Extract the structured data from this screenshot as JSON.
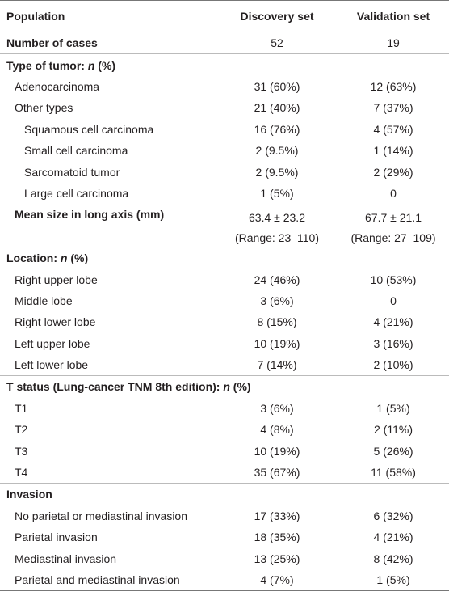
{
  "table": {
    "header": [
      "Population",
      "Discovery set",
      "Validation set"
    ],
    "rows": [
      [
        "Number of cases",
        "52",
        "19"
      ],
      [
        [
          "Type of tumor: ",
          "n",
          " (%)"
        ]
      ],
      [
        "Adenocarcinoma",
        "31 (60%)",
        "12 (63%)"
      ],
      [
        "Other types",
        "21 (40%)",
        "7 (37%)"
      ],
      [
        "Squamous cell carcinoma",
        "16 (76%)",
        "4 (57%)"
      ],
      [
        "Small cell carcinoma",
        "2 (9.5%)",
        "1 (14%)"
      ],
      [
        "Sarcomatoid tumor",
        "2 (9.5%)",
        "2 (29%)"
      ],
      [
        "Large cell carcinoma",
        "1 (5%)",
        "0"
      ],
      [
        "Mean size in long axis (mm)",
        [
          "63.4 ± 23.2",
          "(Range: 23–110)"
        ],
        [
          "67.7 ± 21.1",
          "(Range: 27–109)"
        ]
      ],
      [
        [
          "Location: ",
          "n",
          " (%)"
        ]
      ],
      [
        "Right upper lobe",
        "24 (46%)",
        "10 (53%)"
      ],
      [
        "Middle lobe",
        "3 (6%)",
        "0"
      ],
      [
        "Right lower lobe",
        "8 (15%)",
        "4 (21%)"
      ],
      [
        "Left upper lobe",
        "10 (19%)",
        "3 (16%)"
      ],
      [
        "Left lower lobe",
        "7 (14%)",
        "2 (10%)"
      ],
      [
        [
          "T status (Lung-cancer TNM 8th edition): ",
          "n",
          " (%)"
        ]
      ],
      [
        "T1",
        "3 (6%)",
        "1 (5%)"
      ],
      [
        "T2",
        "4 (8%)",
        "2 (11%)"
      ],
      [
        "T3",
        "10 (19%)",
        "5 (26%)"
      ],
      [
        "T4",
        "35 (67%)",
        "11 (58%)"
      ],
      [
        "Invasion"
      ],
      [
        "No parietal or mediastinal invasion",
        "17 (33%)",
        "6 (32%)"
      ],
      [
        "Parietal invasion",
        "18 (35%)",
        "4 (21%)"
      ],
      [
        "Mediastinal invasion",
        "13 (25%)",
        "8 (42%)"
      ],
      [
        "Parietal and mediastinal invasion",
        "4 (7%)",
        "1 (5%)"
      ]
    ]
  }
}
